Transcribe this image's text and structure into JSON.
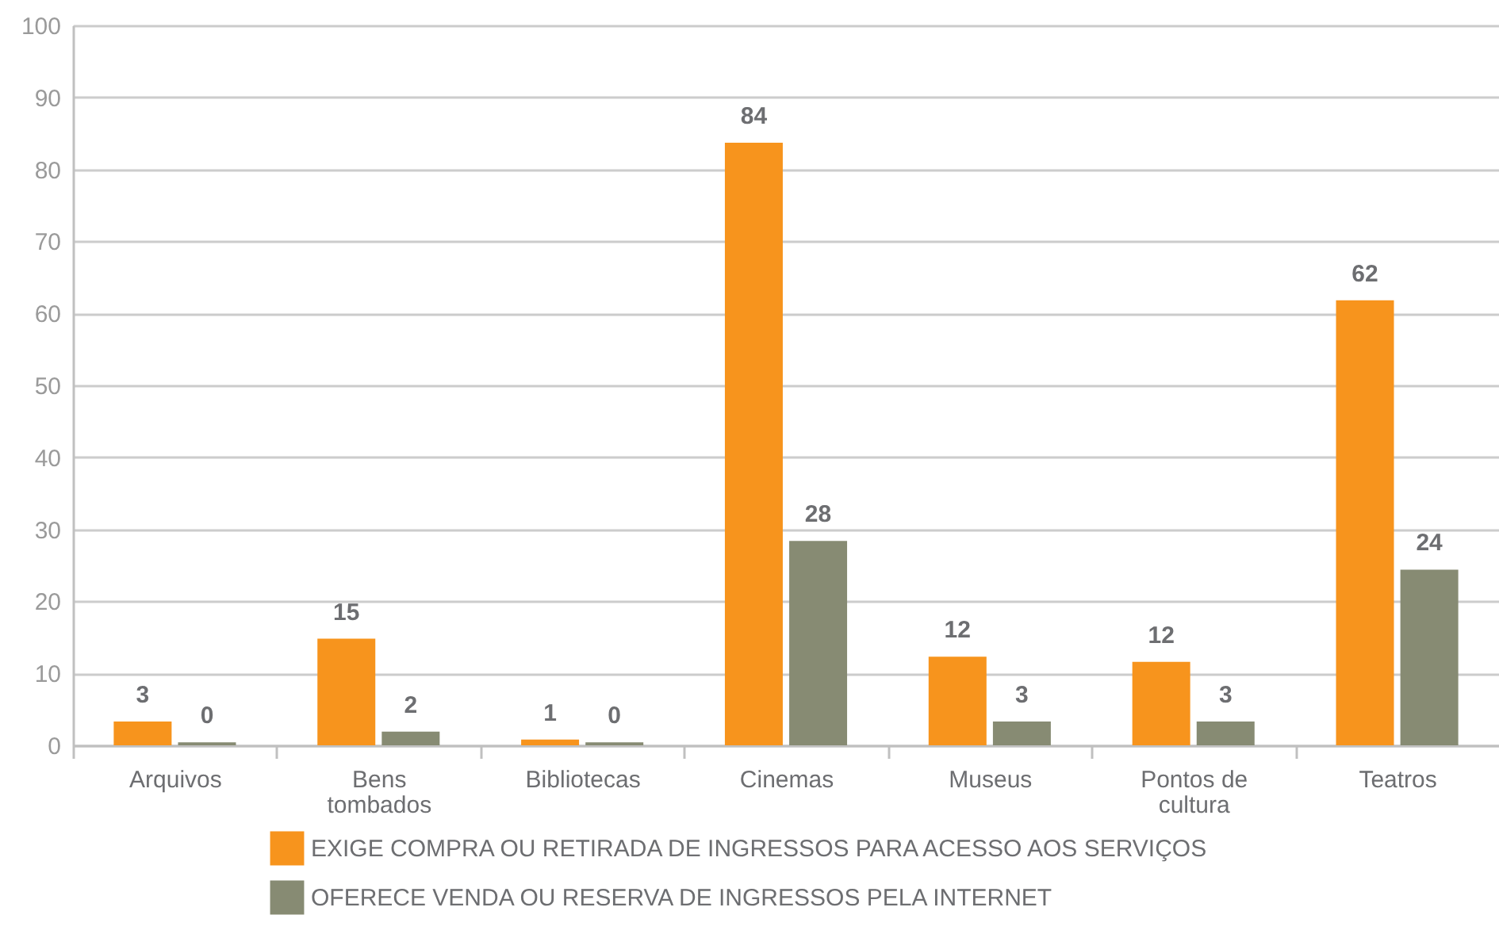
{
  "chart_data": {
    "type": "bar",
    "categories": [
      "Arquivos",
      "Bens tombados",
      "Bibliotecas",
      "Cinemas",
      "Museus",
      "Pontos de cultura",
      "Teatros"
    ],
    "series": [
      {
        "name": "EXIGE COMPRA OU RETIRADA DE INGRESSOS PARA ACESSO AOS SERVIÇOS",
        "color": "#f7941d",
        "values": [
          3.3,
          14.8,
          0.8,
          83.7,
          12.3,
          11.6,
          61.8
        ],
        "value_labels": [
          "3",
          "15",
          "1",
          "84",
          "12",
          "12",
          "62"
        ]
      },
      {
        "name": "OFERECE VENDA OU RESERVA DE INGRESSOS PELA INTERNET",
        "color": "#878b73",
        "values": [
          0.4,
          1.9,
          0.4,
          28.4,
          3.3,
          3.3,
          24.4
        ],
        "value_labels": [
          "0",
          "2",
          "0",
          "28",
          "3",
          "3",
          "24"
        ]
      }
    ],
    "ylim": [
      0,
      100
    ],
    "yticks": [
      0,
      10,
      20,
      30,
      40,
      50,
      60,
      70,
      80,
      90,
      100
    ],
    "grid": "y",
    "legend": "bottom"
  }
}
